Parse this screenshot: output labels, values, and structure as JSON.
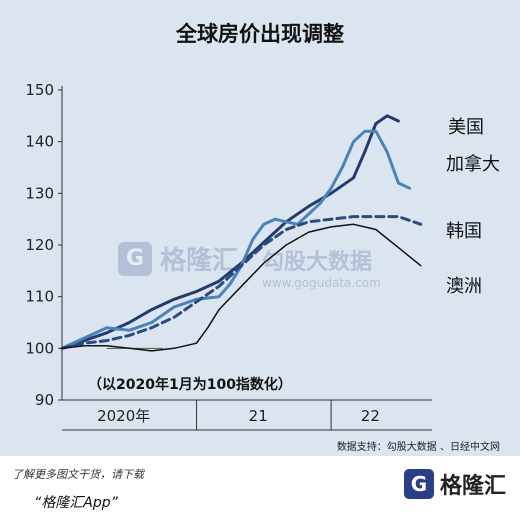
{
  "title": "全球房价出现调整",
  "note": "（以2020年1月为100指数化）",
  "source": "数据支持：勾股大数据 、日经中文网",
  "footer": {
    "line1": "了解更多图文干货，请下载",
    "line2": "“格隆汇App”",
    "logo_text": "格隆汇",
    "logo_mark": "G"
  },
  "watermark": {
    "brand": "格隆汇",
    "brand2": "勾股大数据",
    "url": "www.gogudata.com"
  },
  "chart_data": {
    "type": "line",
    "title": "全球房价出现调整",
    "ylim": [
      90,
      150
    ],
    "yticks": [
      90,
      100,
      110,
      120,
      130,
      140,
      150
    ],
    "xlim": [
      0,
      33
    ],
    "x_labels": [
      "2020年",
      "21",
      "22"
    ],
    "x_label_positions": [
      5.5,
      17.5,
      27.5
    ],
    "x_dividers": [
      12,
      24
    ],
    "series": [
      {
        "name": "美国",
        "color": "#223a6e",
        "width": 3,
        "dash": "",
        "x": [
          0,
          2,
          4,
          6,
          8,
          10,
          12,
          14,
          16,
          18,
          20,
          22,
          24,
          26,
          27,
          28,
          29,
          30
        ],
        "values": [
          100,
          101.5,
          103,
          105,
          107.5,
          109.5,
          111,
          113,
          116.5,
          120.5,
          124.5,
          127.5,
          130,
          133,
          138,
          143.5,
          145,
          144
        ]
      },
      {
        "name": "加拿大",
        "color": "#4a83b8",
        "width": 3,
        "dash": "",
        "x": [
          0,
          2,
          4,
          6,
          8,
          10,
          12,
          14,
          15,
          16,
          17,
          18,
          19,
          20,
          21,
          22,
          23,
          24,
          25,
          26,
          27,
          28,
          29,
          30,
          31
        ],
        "values": [
          100,
          102,
          104,
          103.5,
          105,
          108,
          109.5,
          110,
          112.5,
          116,
          121,
          124,
          125,
          124.5,
          124,
          126,
          128,
          131,
          135,
          140,
          142,
          142,
          138,
          132,
          131
        ]
      },
      {
        "name": "韩国",
        "color": "#2c4a80",
        "width": 3,
        "dash": "8,5",
        "x": [
          0,
          2,
          4,
          6,
          8,
          10,
          12,
          14,
          16,
          18,
          20,
          22,
          24,
          26,
          28,
          30,
          32
        ],
        "values": [
          100,
          101,
          101.5,
          102.5,
          104,
          106,
          109,
          112,
          116,
          120,
          123,
          124.5,
          125,
          125.5,
          125.5,
          125.5,
          124
        ]
      },
      {
        "name": "澳洲",
        "color": "#111111",
        "width": 1.5,
        "dash": "",
        "x": [
          0,
          2,
          4,
          6,
          8,
          10,
          11,
          12,
          13,
          14,
          16,
          18,
          20,
          22,
          24,
          26,
          28,
          30,
          32
        ],
        "values": [
          100,
          100.5,
          100.5,
          100,
          99.5,
          100,
          100.5,
          101,
          104,
          107.5,
          112,
          116.5,
          120,
          122.5,
          123.5,
          124,
          123,
          119.5,
          116
        ]
      }
    ],
    "baseline": {
      "y": 100,
      "x": [
        4,
        9
      ]
    }
  }
}
